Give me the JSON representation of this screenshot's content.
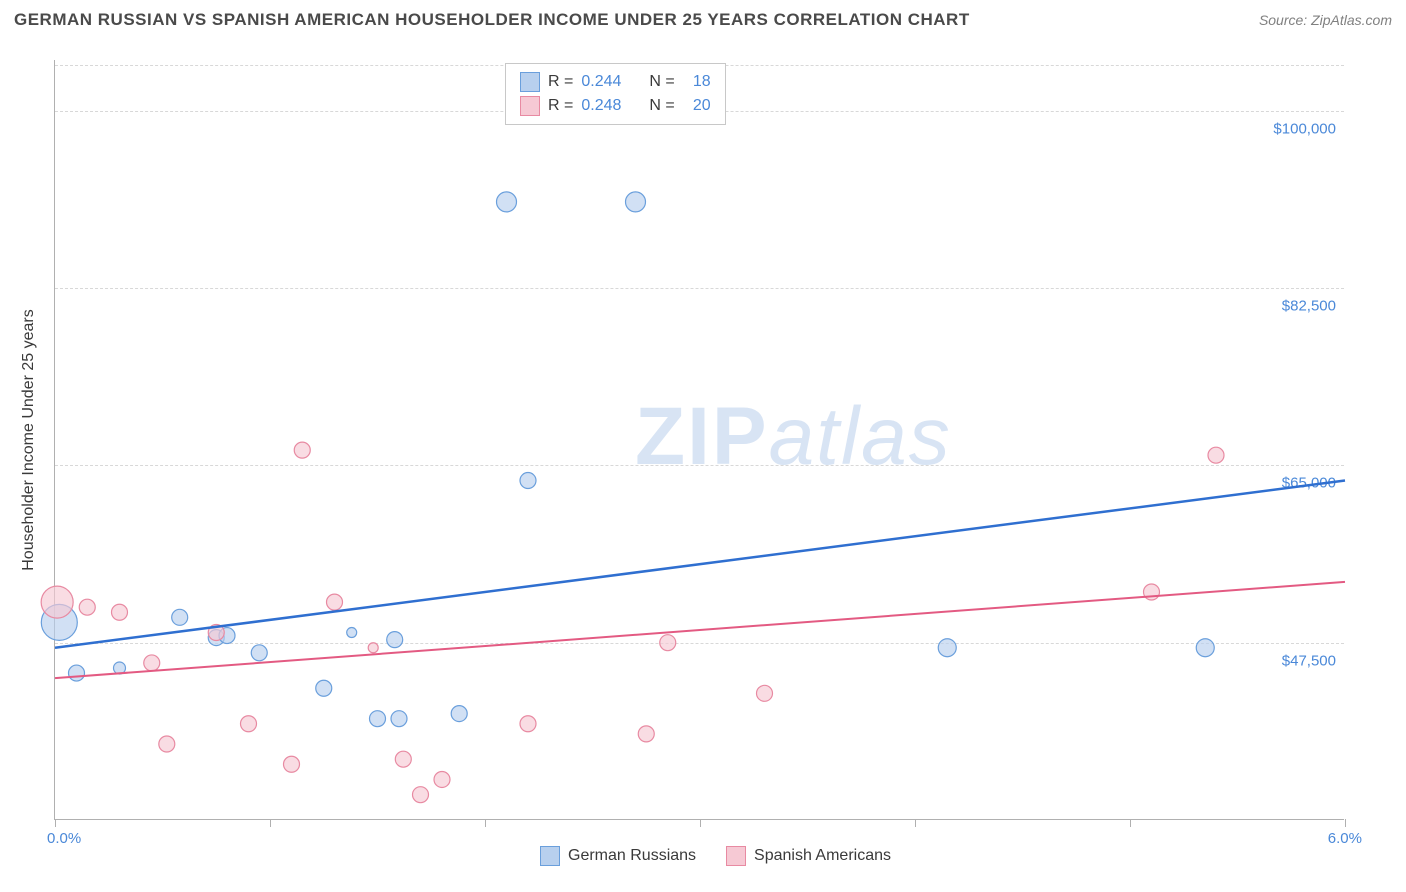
{
  "title": "GERMAN RUSSIAN VS SPANISH AMERICAN HOUSEHOLDER INCOME UNDER 25 YEARS CORRELATION CHART",
  "source": "Source: ZipAtlas.com",
  "watermark": {
    "zip": "ZIP",
    "atlas": "atlas"
  },
  "chart": {
    "type": "scatter",
    "y_axis_title": "Householder Income Under 25 years",
    "xlim": [
      0.0,
      6.0
    ],
    "ylim": [
      30000,
      105000
    ],
    "y_gridlines": [
      47500,
      65000,
      82500,
      100000
    ],
    "y_tick_labels": [
      "$47,500",
      "$65,000",
      "$82,500",
      "$100,000"
    ],
    "x_ticks": [
      0.0,
      1.0,
      2.0,
      3.0,
      4.0,
      5.0,
      6.0
    ],
    "x_tick_labels": {
      "left": "0.0%",
      "right": "6.0%"
    },
    "grid_color": "#d8d8d8",
    "axis_color": "#b0b0b0",
    "label_color": "#4a88d8",
    "background_color": "#ffffff",
    "series": [
      {
        "name": "German Russians",
        "fill": "#b8d0ee",
        "stroke": "#6a9fdc",
        "line_color": "#2f6fd0",
        "line_width": 2.5,
        "R": "0.244",
        "N": "18",
        "regression": {
          "x1": 0.0,
          "y1": 47000,
          "x2": 6.0,
          "y2": 63500
        },
        "points": [
          {
            "x": 0.02,
            "y": 49500,
            "r": 18
          },
          {
            "x": 0.1,
            "y": 44500,
            "r": 8
          },
          {
            "x": 0.3,
            "y": 45000,
            "r": 6
          },
          {
            "x": 0.58,
            "y": 50000,
            "r": 8
          },
          {
            "x": 0.75,
            "y": 48000,
            "r": 8
          },
          {
            "x": 0.8,
            "y": 48200,
            "r": 8
          },
          {
            "x": 0.95,
            "y": 46500,
            "r": 8
          },
          {
            "x": 1.25,
            "y": 43000,
            "r": 8
          },
          {
            "x": 1.38,
            "y": 48500,
            "r": 5
          },
          {
            "x": 1.5,
            "y": 40000,
            "r": 8
          },
          {
            "x": 1.58,
            "y": 47800,
            "r": 8
          },
          {
            "x": 1.6,
            "y": 40000,
            "r": 8
          },
          {
            "x": 1.88,
            "y": 40500,
            "r": 8
          },
          {
            "x": 2.1,
            "y": 91000,
            "r": 10
          },
          {
            "x": 2.2,
            "y": 63500,
            "r": 8
          },
          {
            "x": 2.7,
            "y": 91000,
            "r": 10
          },
          {
            "x": 4.15,
            "y": 47000,
            "r": 9
          },
          {
            "x": 5.35,
            "y": 47000,
            "r": 9
          }
        ]
      },
      {
        "name": "Spanish Americans",
        "fill": "#f6c9d4",
        "stroke": "#e88aa2",
        "line_color": "#e35a82",
        "line_width": 2,
        "R": "0.248",
        "N": "20",
        "regression": {
          "x1": 0.0,
          "y1": 44000,
          "x2": 6.0,
          "y2": 53500
        },
        "points": [
          {
            "x": 0.01,
            "y": 51500,
            "r": 16
          },
          {
            "x": 0.15,
            "y": 51000,
            "r": 8
          },
          {
            "x": 0.3,
            "y": 50500,
            "r": 8
          },
          {
            "x": 0.45,
            "y": 45500,
            "r": 8
          },
          {
            "x": 0.52,
            "y": 37500,
            "r": 8
          },
          {
            "x": 0.75,
            "y": 48500,
            "r": 8
          },
          {
            "x": 0.9,
            "y": 39500,
            "r": 8
          },
          {
            "x": 1.1,
            "y": 35500,
            "r": 8
          },
          {
            "x": 1.15,
            "y": 66500,
            "r": 8
          },
          {
            "x": 1.3,
            "y": 51500,
            "r": 8
          },
          {
            "x": 1.48,
            "y": 47000,
            "r": 5
          },
          {
            "x": 1.62,
            "y": 36000,
            "r": 8
          },
          {
            "x": 1.7,
            "y": 32500,
            "r": 8
          },
          {
            "x": 1.8,
            "y": 34000,
            "r": 8
          },
          {
            "x": 2.2,
            "y": 39500,
            "r": 8
          },
          {
            "x": 2.75,
            "y": 38500,
            "r": 8
          },
          {
            "x": 2.85,
            "y": 47500,
            "r": 8
          },
          {
            "x": 3.3,
            "y": 42500,
            "r": 8
          },
          {
            "x": 5.1,
            "y": 52500,
            "r": 8
          },
          {
            "x": 5.4,
            "y": 66000,
            "r": 8
          }
        ]
      }
    ]
  },
  "legend_bottom": [
    {
      "label": "German Russians",
      "fill": "#b8d0ee",
      "stroke": "#6a9fdc"
    },
    {
      "label": "Spanish Americans",
      "fill": "#f6c9d4",
      "stroke": "#e88aa2"
    }
  ]
}
